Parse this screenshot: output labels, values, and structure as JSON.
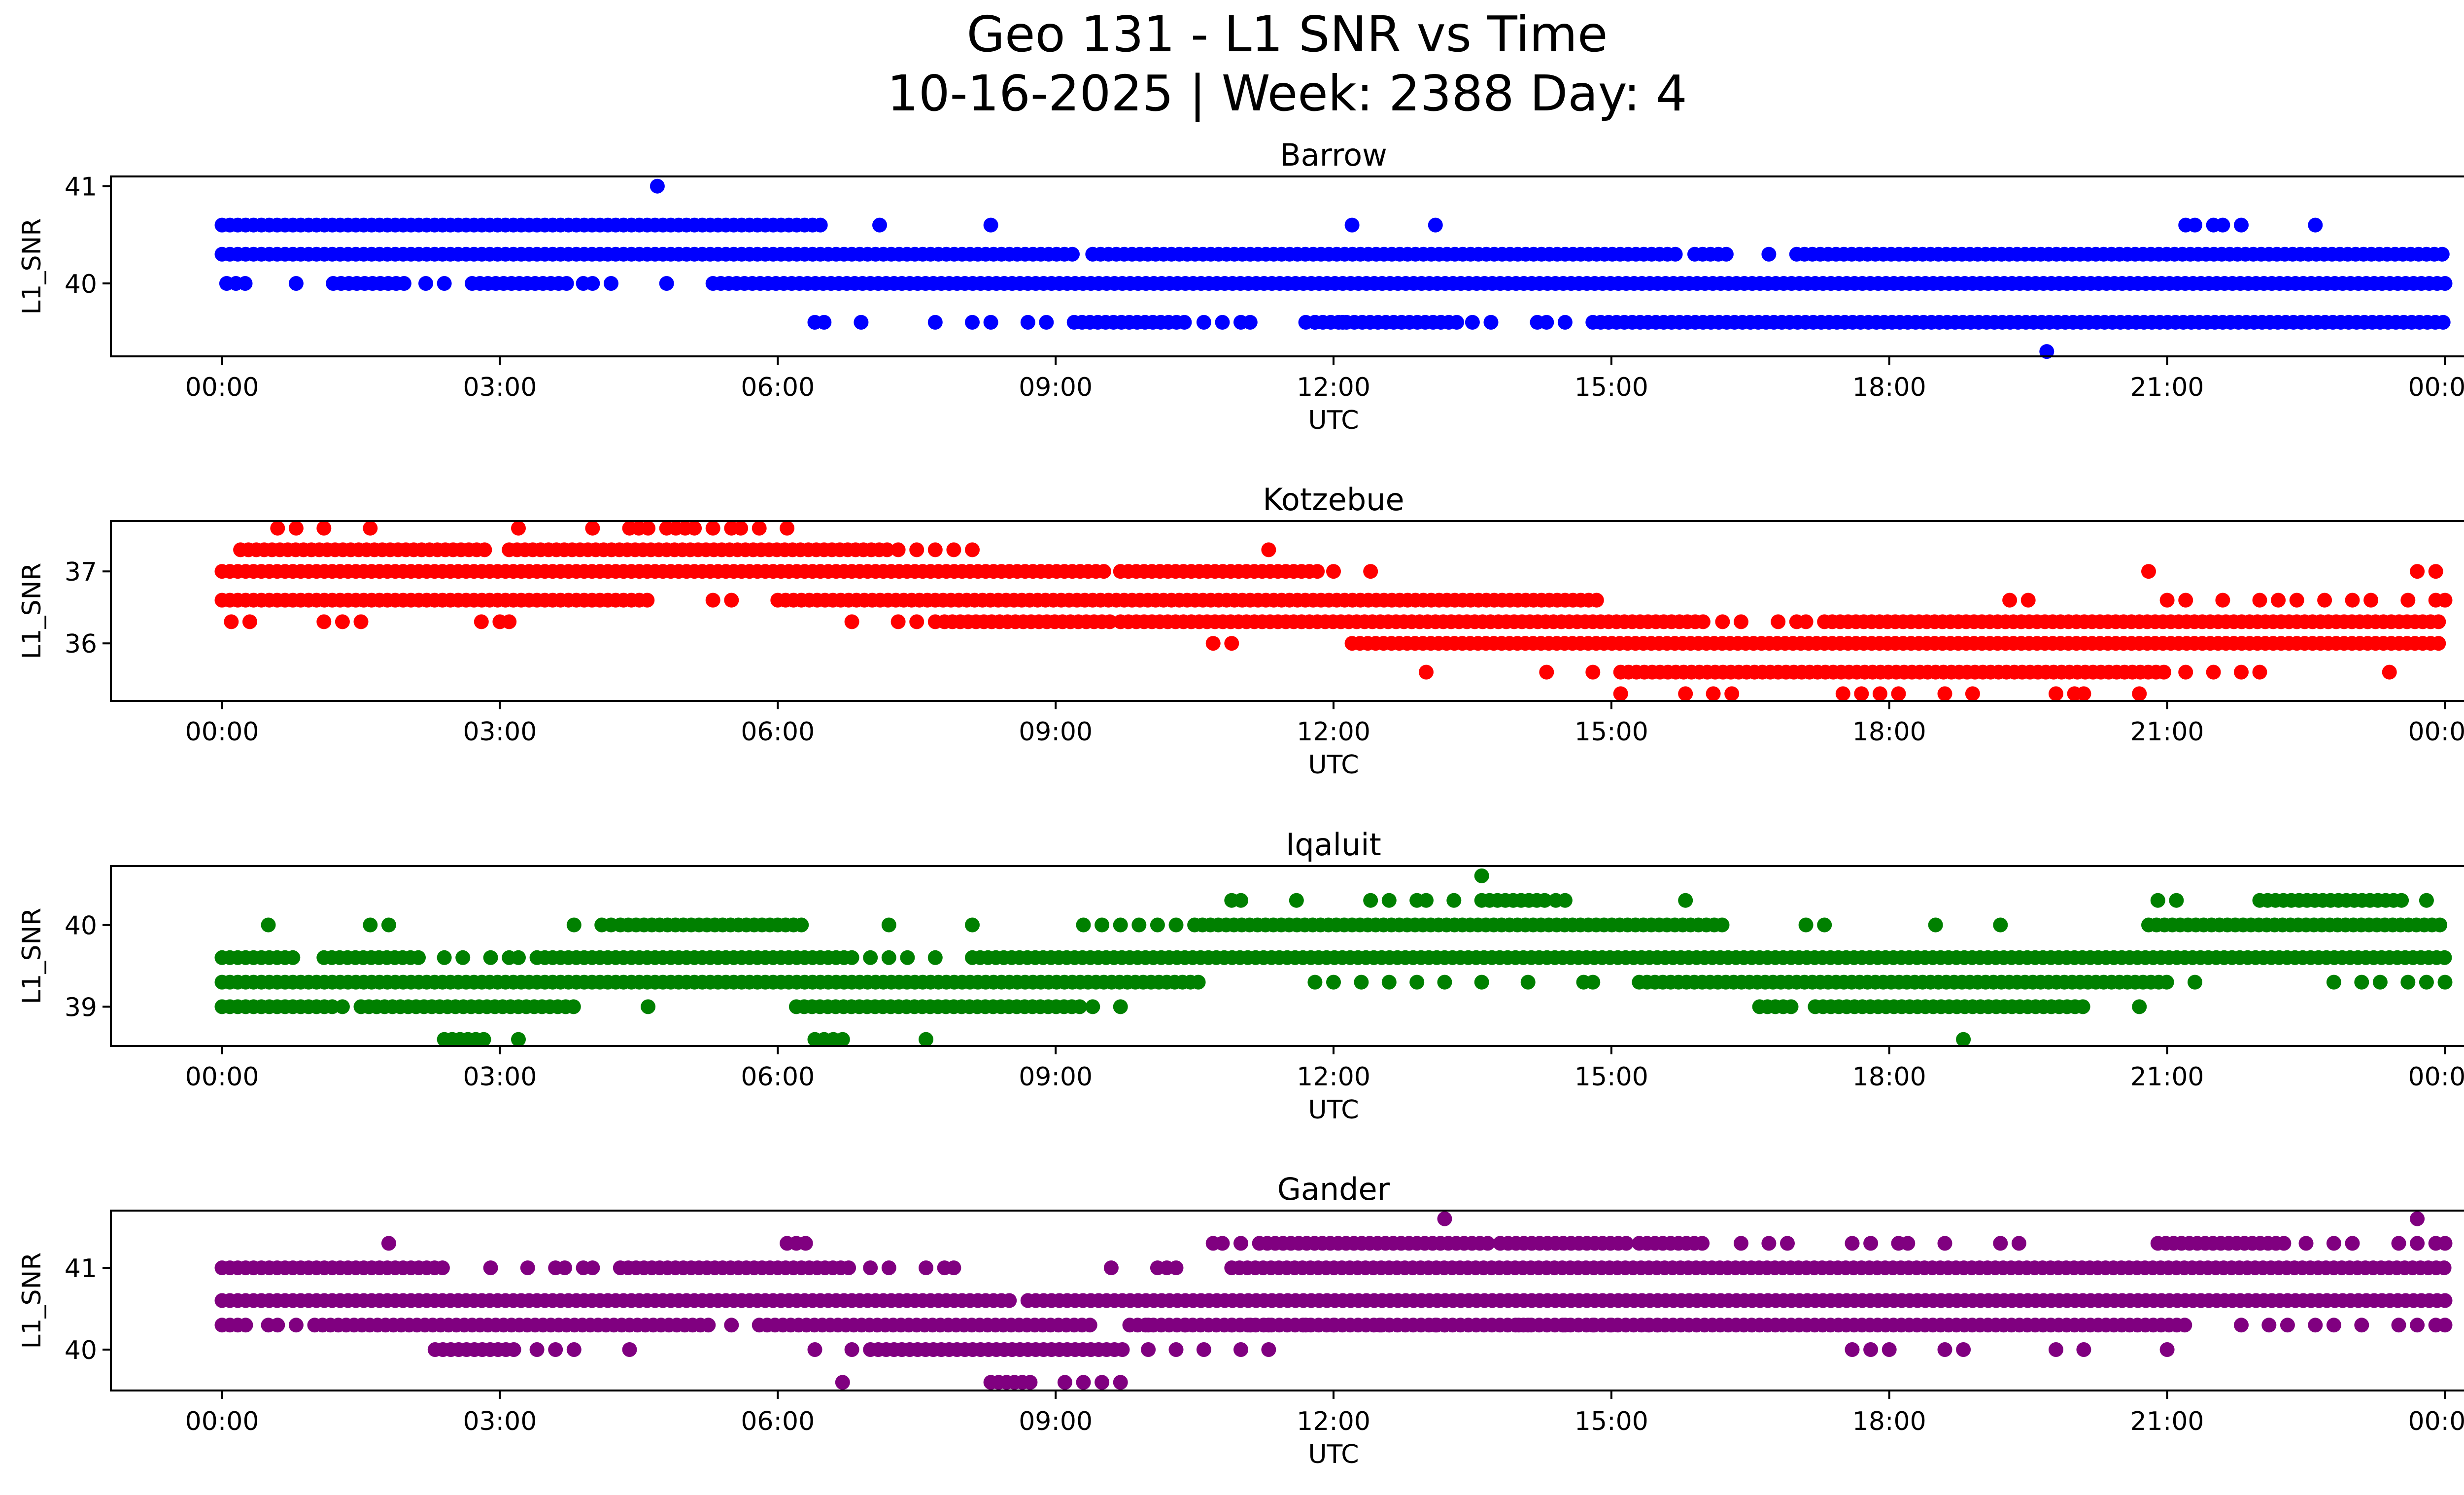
{
  "figure": {
    "title_line1": "Geo 131 - L1 SNR vs Time",
    "title_line2": "10-16-2025 | Week: 2388 Day: 4"
  },
  "chart_data": [
    {
      "type": "scatter",
      "title": "Barrow",
      "xlabel": "UTC",
      "ylabel": "L1_SNR",
      "color": "#0000ff",
      "xticks": [
        "00:00",
        "03:00",
        "06:00",
        "09:00",
        "12:00",
        "15:00",
        "18:00",
        "21:00",
        "00:00"
      ],
      "xlim_hours": [
        -1.2,
        25.2
      ],
      "ylim": [
        39.25,
        41.1
      ],
      "yticks": [
        40,
        41
      ],
      "ytick_labels": [
        "40",
        "41"
      ],
      "levels": [
        {
          "y": 40.6,
          "segments": [
            [
              0,
              6.5
            ]
          ],
          "points": [
            7.1,
            8.3,
            12.2,
            13.1,
            21.2,
            21.3,
            21.5,
            21.6,
            21.8,
            22.6
          ]
        },
        {
          "y": 40.3,
          "segments": [
            [
              0,
              9.2
            ],
            [
              9.4,
              15.7
            ],
            [
              15.9,
              16.3
            ],
            [
              17.0,
              24
            ]
          ],
          "points": [
            16.7
          ]
        },
        {
          "y": 40.0,
          "segments": [
            [
              1.2,
              2.0
            ],
            [
              2.7,
              3.8
            ],
            [
              5.3,
              24
            ]
          ],
          "points": [
            0.05,
            0.15,
            0.25,
            0.8,
            2.2,
            2.4,
            3.9,
            4.0,
            4.2,
            4.8
          ]
        },
        {
          "y": 39.6,
          "segments": [
            [
              9.2,
              10.4
            ],
            [
              11.8,
              13.4
            ],
            [
              14.8,
              24
            ]
          ],
          "points": [
            6.4,
            6.5,
            6.9,
            7.7,
            8.1,
            8.3,
            8.7,
            8.9,
            10.6,
            10.8,
            11.0,
            11.1,
            11.7,
            11.8,
            12.1,
            13.5,
            13.7,
            14.2,
            14.3,
            14.5
          ]
        },
        {
          "y": 39.3,
          "segments": [],
          "points": [
            19.7
          ]
        },
        {
          "y": 41.0,
          "segments": [],
          "points": [
            4.7
          ]
        }
      ]
    },
    {
      "type": "scatter",
      "title": "Kotzebue",
      "xlabel": "UTC",
      "ylabel": "L1_SNR",
      "color": "#ff0000",
      "xticks": [
        "00:00",
        "03:00",
        "06:00",
        "09:00",
        "12:00",
        "15:00",
        "18:00",
        "21:00",
        "00:00"
      ],
      "xlim_hours": [
        -1.2,
        25.2
      ],
      "ylim": [
        35.2,
        37.7
      ],
      "yticks": [
        36,
        37
      ],
      "ytick_labels": [
        "36",
        "37"
      ],
      "levels": [
        {
          "y": 37.6,
          "segments": [],
          "points": [
            0.6,
            0.8,
            1.1,
            1.6,
            3.2,
            4.0,
            4.4,
            4.5,
            4.6,
            4.8,
            4.9,
            5.0,
            5.1,
            5.3,
            5.5,
            5.6,
            5.8,
            6.1
          ]
        },
        {
          "y": 37.3,
          "segments": [
            [
              0.2,
              2.9
            ],
            [
              3.1,
              7.2
            ]
          ],
          "points": [
            7.3,
            7.5,
            7.7,
            7.9,
            8.1,
            11.3
          ]
        },
        {
          "y": 37.0,
          "segments": [
            [
              0,
              9.6
            ],
            [
              9.7,
              11.9
            ]
          ],
          "points": [
            12.0,
            12.4,
            20.8,
            23.7,
            23.9
          ]
        },
        {
          "y": 36.6,
          "segments": [
            [
              0,
              4.6
            ],
            [
              6.0,
              14.9
            ]
          ],
          "points": [
            5.3,
            5.5,
            19.3,
            19.5,
            21.0,
            21.2,
            21.6,
            22.0,
            22.2,
            22.4,
            22.7,
            23.0,
            23.2,
            23.6,
            23.9,
            24.0
          ]
        },
        {
          "y": 36.3,
          "segments": [
            [
              7.8,
              9.6
            ],
            [
              9.7,
              16.0
            ],
            [
              17.3,
              24
            ]
          ],
          "points": [
            0.1,
            0.3,
            1.1,
            1.3,
            1.5,
            2.8,
            3.0,
            3.1,
            6.8,
            7.3,
            7.5,
            7.7,
            16.2,
            16.4,
            16.8,
            17.0,
            17.1
          ]
        },
        {
          "y": 36.0,
          "segments": [
            [
              12.2,
              24
            ]
          ],
          "points": [
            10.7,
            10.9
          ]
        },
        {
          "y": 35.6,
          "segments": [
            [
              15.1,
              21.0
            ]
          ],
          "points": [
            13.0,
            14.3,
            14.8,
            21.2,
            21.5,
            21.8,
            22.0,
            23.4
          ]
        },
        {
          "y": 35.3,
          "segments": [],
          "points": [
            15.1,
            15.8,
            16.1,
            16.3,
            17.5,
            17.7,
            17.9,
            18.1,
            18.6,
            18.9,
            19.8,
            20.0,
            20.1,
            20.7
          ]
        }
      ]
    },
    {
      "type": "scatter",
      "title": "Iqaluit",
      "xlabel": "UTC",
      "ylabel": "L1_SNR",
      "color": "#008000",
      "xticks": [
        "00:00",
        "03:00",
        "06:00",
        "09:00",
        "12:00",
        "15:00",
        "18:00",
        "21:00",
        "00:00"
      ],
      "xlim_hours": [
        -1.2,
        25.2
      ],
      "ylim": [
        38.52,
        40.72
      ],
      "yticks": [
        39,
        40
      ],
      "ytick_labels": [
        "39",
        "40"
      ],
      "levels": [
        {
          "y": 40.6,
          "segments": [],
          "points": [
            13.6
          ]
        },
        {
          "y": 40.3,
          "segments": [
            [
              13.6,
              14.3
            ],
            [
              22.0,
              23.6
            ]
          ],
          "points": [
            10.9,
            11.0,
            11.6,
            12.4,
            12.6,
            12.9,
            13.0,
            13.3,
            14.4,
            14.5,
            15.8,
            20.9,
            21.1,
            23.8
          ]
        },
        {
          "y": 40.0,
          "segments": [
            [
              4.3,
              6.3
            ],
            [
              10.5,
              16.2
            ],
            [
              20.8,
              24
            ]
          ],
          "points": [
            0.5,
            1.6,
            1.8,
            3.8,
            4.1,
            4.2,
            7.2,
            8.1,
            9.3,
            9.5,
            9.7,
            9.9,
            10.1,
            10.3,
            17.1,
            17.3,
            18.5,
            19.2
          ]
        },
        {
          "y": 39.6,
          "segments": [
            [
              0,
              0.8
            ],
            [
              1.1,
              2.2
            ],
            [
              3.4,
              6.8
            ],
            [
              8.1,
              24
            ]
          ],
          "points": [
            2.4,
            2.6,
            2.9,
            3.1,
            3.2,
            7.0,
            7.2,
            7.4,
            7.7
          ]
        },
        {
          "y": 39.3,
          "segments": [
            [
              0,
              10.6
            ],
            [
              15.3,
              21.0
            ]
          ],
          "points": [
            11.8,
            12.0,
            12.3,
            12.6,
            12.9,
            13.2,
            13.6,
            14.1,
            14.7,
            14.8,
            21.3,
            22.8,
            23.1,
            23.3,
            23.6,
            23.8,
            24.0
          ]
        },
        {
          "y": 39.0,
          "segments": [
            [
              0,
              1.2
            ],
            [
              1.5,
              3.8
            ],
            [
              6.2,
              9.3
            ],
            [
              16.6,
              17.0
            ],
            [
              17.2,
              20.1
            ]
          ],
          "points": [
            1.3,
            4.6,
            9.4,
            9.7,
            20.7
          ]
        },
        {
          "y": 38.6,
          "segments": [
            [
              2.4,
              2.9
            ]
          ],
          "points": [
            3.2,
            6.4,
            6.5,
            6.6,
            6.7,
            7.6,
            18.8
          ]
        }
      ]
    },
    {
      "type": "scatter",
      "title": "Gander",
      "xlabel": "UTC",
      "ylabel": "L1_SNR",
      "color": "#800080",
      "xticks": [
        "00:00",
        "03:00",
        "06:00",
        "09:00",
        "12:00",
        "15:00",
        "18:00",
        "21:00",
        "00:00"
      ],
      "xlim_hours": [
        -1.2,
        25.2
      ],
      "ylim": [
        39.5,
        41.7
      ],
      "yticks": [
        40,
        41
      ],
      "ytick_labels": [
        "40",
        "41"
      ],
      "levels": [
        {
          "y": 41.6,
          "segments": [],
          "points": [
            13.2,
            23.7
          ]
        },
        {
          "y": 41.3,
          "segments": [
            [
              11.2,
              13.7
            ],
            [
              13.8,
              15.2
            ],
            [
              15.3,
              16.0
            ],
            [
              20.9,
              22.3
            ]
          ],
          "points": [
            1.8,
            6.1,
            6.2,
            6.3,
            10.7,
            10.8,
            11.0,
            16.4,
            16.7,
            16.9,
            17.6,
            17.8,
            18.1,
            18.2,
            18.6,
            19.2,
            19.4,
            22.5,
            22.8,
            23.0,
            23.5,
            23.7,
            23.9,
            24.0
          ]
        },
        {
          "y": 41.0,
          "segments": [
            [
              0,
              2.4
            ],
            [
              4.3,
              6.8
            ],
            [
              10.9,
              24
            ]
          ],
          "points": [
            2.9,
            3.3,
            3.6,
            3.7,
            3.9,
            4.0,
            7.0,
            7.2,
            7.6,
            7.8,
            7.9,
            9.6,
            10.1,
            10.2,
            10.3
          ]
        },
        {
          "y": 40.6,
          "segments": [
            [
              0,
              8.5
            ],
            [
              8.7,
              24
            ]
          ],
          "points": []
        },
        {
          "y": 40.3,
          "segments": [
            [
              0,
              0.3
            ],
            [
              1.0,
              5.3
            ],
            [
              5.8,
              9.4
            ],
            [
              9.8,
              21.2
            ]
          ],
          "points": [
            0.5,
            0.6,
            0.8,
            5.5,
            10.0,
            10.4,
            10.9,
            11.1,
            11.3,
            11.7,
            12.0,
            12.5,
            12.6,
            13.1,
            13.2,
            14.0,
            14.1,
            14.5,
            14.8,
            15.0,
            15.4,
            15.5,
            21.8,
            22.1,
            22.3,
            22.6,
            22.8,
            23.1,
            23.5,
            23.7,
            23.9,
            24.0
          ]
        },
        {
          "y": 40.0,
          "segments": [
            [
              2.3,
              3.2
            ],
            [
              7.0,
              9.8
            ]
          ],
          "points": [
            3.4,
            3.6,
            3.8,
            4.4,
            6.4,
            6.8,
            10.0,
            10.3,
            10.6,
            11.0,
            11.3,
            17.6,
            17.8,
            18.0,
            18.6,
            18.8,
            19.8,
            20.1,
            21.0
          ]
        },
        {
          "y": 39.6,
          "segments": [
            [
              8.3,
              8.8
            ]
          ],
          "points": [
            6.7,
            9.1,
            9.3,
            9.5,
            9.7
          ]
        }
      ]
    }
  ]
}
